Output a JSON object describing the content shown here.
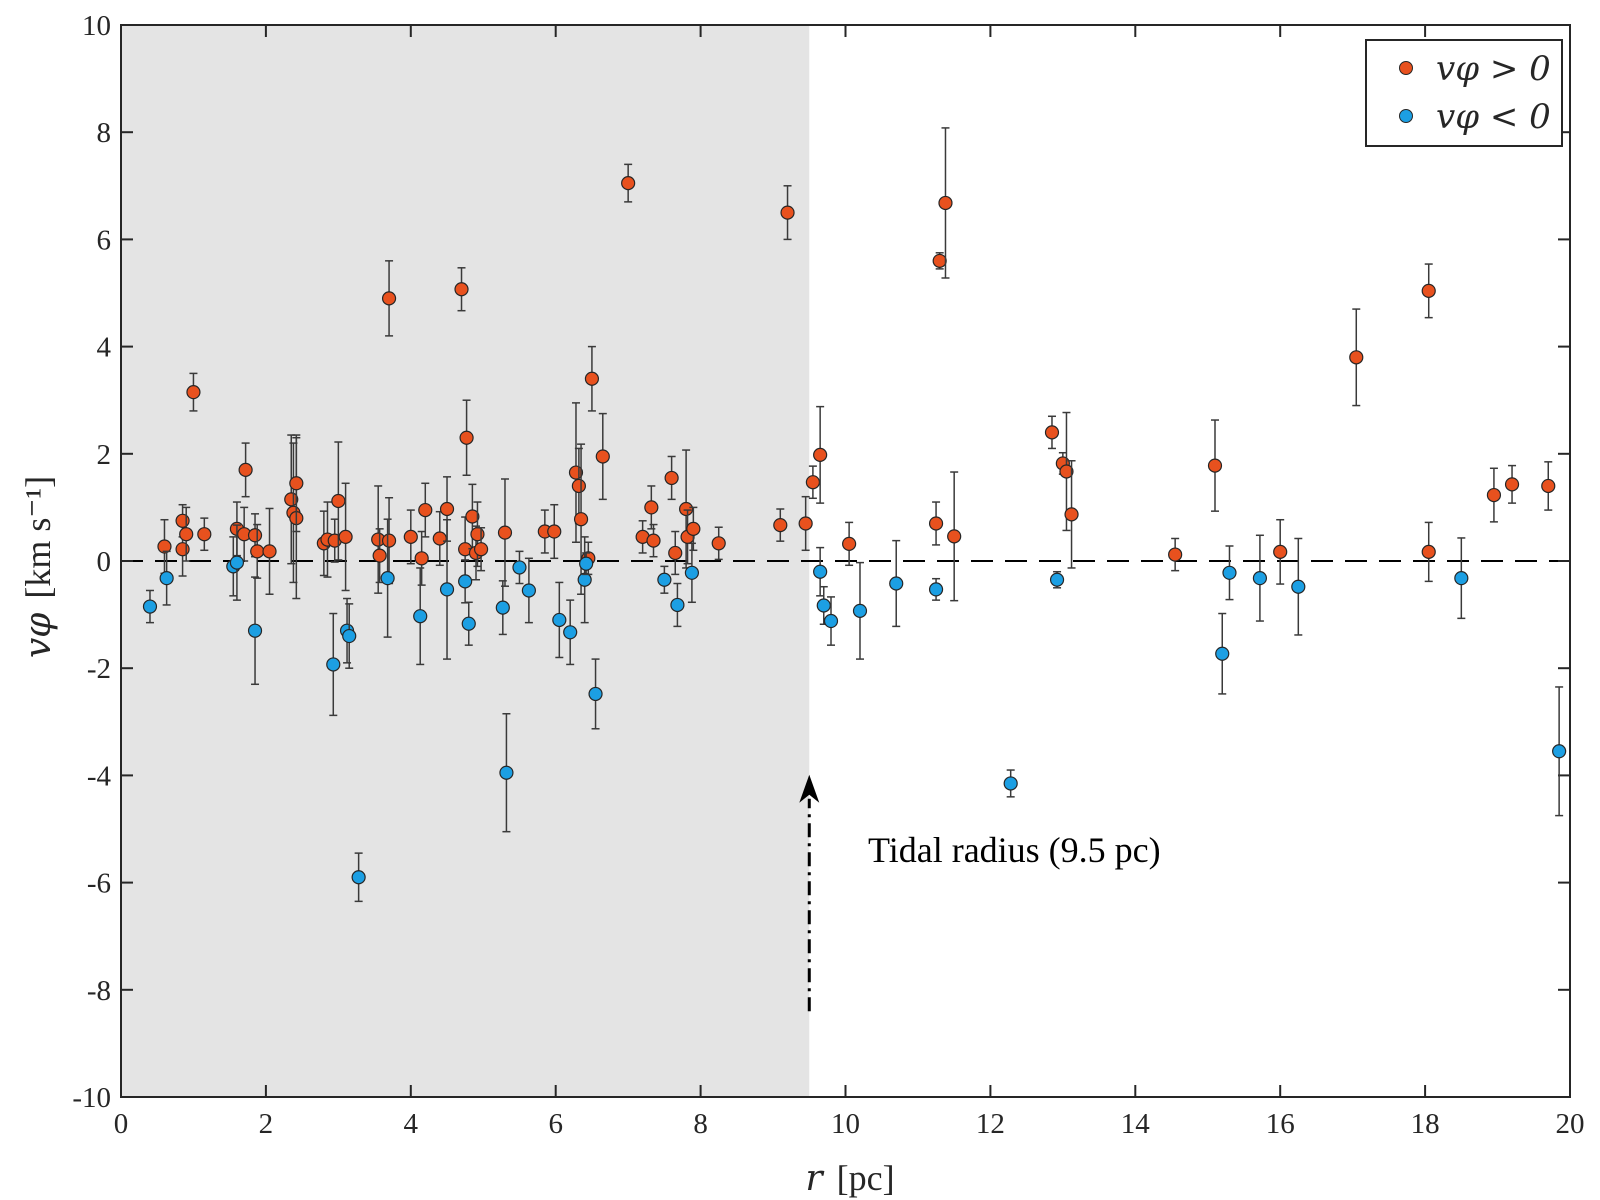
{
  "chart_data": {
    "type": "scatter",
    "title": "",
    "xlabel": "r",
    "xlabel_unit": "[pc]",
    "ylabel": "vφ",
    "ylabel_unit": "[km s⁻¹]",
    "xlim": [
      0,
      20
    ],
    "ylim": [
      -10,
      10
    ],
    "xticks": [
      0,
      2,
      4,
      6,
      8,
      10,
      12,
      14,
      16,
      18,
      20
    ],
    "yticks": [
      -10,
      -8,
      -6,
      -4,
      -2,
      0,
      2,
      4,
      6,
      8,
      10
    ],
    "grid": false,
    "legend_position": "top-right",
    "shaded_region": {
      "x_from": 0,
      "x_to": 9.5,
      "color": "#e4e4e4"
    },
    "reference_line": {
      "y": 0,
      "style": "dashed"
    },
    "annotation": {
      "text": "Tidal radius (9.5 pc)",
      "arrow_x": 9.5,
      "arrow_from_y": -8.4,
      "arrow_to_y": -4.1
    },
    "series": [
      {
        "name": "vφ > 0",
        "legend_label": "vφ > 0",
        "color": "#e8511e",
        "points": [
          [
            0.6,
            0.27,
            0.5
          ],
          [
            0.85,
            0.22,
            0.5
          ],
          [
            0.85,
            0.75,
            0.3
          ],
          [
            0.9,
            0.5,
            0.5
          ],
          [
            1.0,
            3.15,
            0.35
          ],
          [
            1.15,
            0.5,
            0.3
          ],
          [
            1.6,
            0.6,
            0.5
          ],
          [
            1.7,
            0.5,
            0.5
          ],
          [
            1.72,
            1.7,
            0.5
          ],
          [
            1.85,
            0.48,
            0.4
          ],
          [
            1.88,
            0.18,
            0.5
          ],
          [
            2.05,
            0.18,
            0.8
          ],
          [
            2.35,
            1.15,
            1.2
          ],
          [
            2.38,
            0.9,
            1.3
          ],
          [
            2.42,
            0.8,
            1.5
          ],
          [
            2.42,
            1.45,
            0.9
          ],
          [
            2.8,
            0.33,
            0.6
          ],
          [
            2.85,
            0.4,
            0.7
          ],
          [
            2.95,
            0.38,
            0.4
          ],
          [
            3.0,
            1.12,
            1.1
          ],
          [
            3.1,
            0.45,
            1.0
          ],
          [
            3.55,
            0.4,
            1.0
          ],
          [
            3.57,
            0.1,
            0.5
          ],
          [
            3.7,
            0.38,
            0.8
          ],
          [
            3.7,
            4.9,
            0.7
          ],
          [
            4.0,
            0.45,
            0.5
          ],
          [
            4.15,
            0.05,
            0.5
          ],
          [
            4.2,
            0.95,
            0.5
          ],
          [
            4.4,
            0.42,
            0.5
          ],
          [
            4.5,
            0.97,
            0.6
          ],
          [
            4.7,
            5.07,
            0.4
          ],
          [
            4.75,
            0.22,
            0.6
          ],
          [
            4.77,
            2.3,
            0.7
          ],
          [
            4.85,
            0.83,
            0.6
          ],
          [
            4.9,
            0.15,
            0.5
          ],
          [
            4.92,
            0.5,
            0.6
          ],
          [
            4.97,
            0.22,
            0.4
          ],
          [
            5.3,
            0.53,
            1.0
          ],
          [
            5.85,
            0.55,
            0.4
          ],
          [
            5.98,
            0.55,
            0.5
          ],
          [
            6.28,
            1.65,
            1.3
          ],
          [
            6.32,
            1.4,
            0.7
          ],
          [
            6.35,
            0.78,
            1.4
          ],
          [
            6.45,
            0.05,
            0.3
          ],
          [
            6.5,
            3.4,
            0.6
          ],
          [
            6.65,
            1.95,
            0.8
          ],
          [
            7.0,
            7.05,
            0.35
          ],
          [
            7.2,
            0.45,
            0.3
          ],
          [
            7.32,
            1.0,
            0.4
          ],
          [
            7.35,
            0.38,
            0.3
          ],
          [
            7.6,
            1.55,
            0.4
          ],
          [
            7.65,
            0.15,
            0.4
          ],
          [
            7.8,
            0.97,
            1.1
          ],
          [
            7.82,
            0.45,
            0.5
          ],
          [
            7.9,
            0.6,
            0.4
          ],
          [
            8.25,
            0.33,
            0.3
          ],
          [
            9.1,
            0.67,
            0.3
          ],
          [
            9.2,
            6.5,
            0.5
          ],
          [
            9.45,
            0.7,
            0.5
          ],
          [
            9.55,
            1.47,
            0.3
          ],
          [
            9.65,
            1.98,
            0.9
          ],
          [
            10.05,
            0.32,
            0.4
          ],
          [
            11.25,
            0.7,
            0.4
          ],
          [
            11.3,
            5.6,
            0.15
          ],
          [
            11.38,
            6.68,
            1.4
          ],
          [
            11.5,
            0.46,
            1.2
          ],
          [
            12.85,
            2.4,
            0.3
          ],
          [
            13.0,
            1.82,
            0.2
          ],
          [
            13.05,
            1.67,
            1.1
          ],
          [
            13.12,
            0.87,
            1.0
          ],
          [
            14.55,
            0.12,
            0.3
          ],
          [
            15.1,
            1.78,
            0.85
          ],
          [
            16.0,
            0.17,
            0.6
          ],
          [
            17.05,
            3.8,
            0.9
          ],
          [
            18.05,
            5.04,
            0.5
          ],
          [
            18.05,
            0.17,
            0.55
          ],
          [
            18.95,
            1.23,
            0.5
          ],
          [
            19.2,
            1.43,
            0.35
          ],
          [
            19.7,
            1.4,
            0.45
          ]
        ]
      },
      {
        "name": "vφ < 0",
        "legend_label": "vφ < 0",
        "color": "#1c9fe3",
        "points": [
          [
            0.4,
            -0.85,
            0.3
          ],
          [
            0.63,
            -0.32,
            0.5
          ],
          [
            1.55,
            -0.1,
            0.55
          ],
          [
            1.6,
            -0.03,
            0.7
          ],
          [
            1.85,
            -1.3,
            1.0
          ],
          [
            2.93,
            -1.93,
            0.95
          ],
          [
            3.12,
            -1.3,
            0.6
          ],
          [
            3.15,
            -1.4,
            0.6
          ],
          [
            3.28,
            -5.9,
            0.45
          ],
          [
            3.68,
            -0.32,
            1.1
          ],
          [
            4.13,
            -1.03,
            0.9
          ],
          [
            4.5,
            -0.53,
            1.3
          ],
          [
            4.75,
            -0.38,
            0.4
          ],
          [
            4.8,
            -1.17,
            0.4
          ],
          [
            5.27,
            -0.87,
            0.5
          ],
          [
            5.32,
            -3.95,
            1.1
          ],
          [
            5.5,
            -0.12,
            0.3
          ],
          [
            5.63,
            -0.55,
            0.6
          ],
          [
            6.05,
            -1.1,
            0.7
          ],
          [
            6.2,
            -1.33,
            0.6
          ],
          [
            6.4,
            -0.35,
            0.8
          ],
          [
            6.42,
            -0.05,
            0.2
          ],
          [
            6.55,
            -2.48,
            0.65
          ],
          [
            7.5,
            -0.35,
            0.25
          ],
          [
            7.68,
            -0.82,
            0.4
          ],
          [
            7.88,
            -0.22,
            0.55
          ],
          [
            9.65,
            -0.2,
            0.45
          ],
          [
            9.7,
            -0.83,
            0.35
          ],
          [
            9.8,
            -1.12,
            0.45
          ],
          [
            10.2,
            -0.93,
            0.9
          ],
          [
            10.7,
            -0.42,
            0.8
          ],
          [
            11.25,
            -0.53,
            0.2
          ],
          [
            12.28,
            -4.15,
            0.25
          ],
          [
            12.92,
            -0.35,
            0.15
          ],
          [
            15.2,
            -1.73,
            0.75
          ],
          [
            15.3,
            -0.22,
            0.5
          ],
          [
            15.72,
            -0.32,
            0.8
          ],
          [
            16.25,
            -0.48,
            0.9
          ],
          [
            18.5,
            -0.32,
            0.75
          ],
          [
            19.85,
            -3.55,
            1.2
          ]
        ]
      }
    ]
  }
}
